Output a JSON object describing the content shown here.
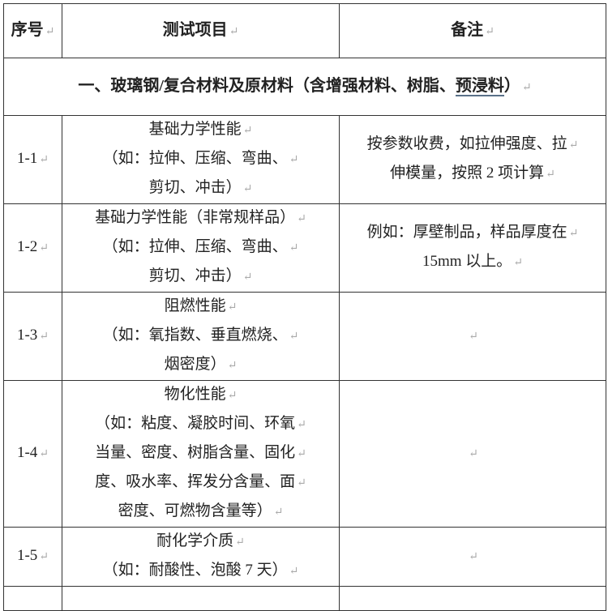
{
  "header": {
    "col_index": "序号",
    "col_item": "测试项目",
    "col_note": "备注"
  },
  "section": {
    "title_prefix": "一、玻璃钢/复合材料及原材料（含增强材料、树脂、",
    "title_underlined": "预浸料",
    "title_suffix": "）"
  },
  "rows": [
    {
      "id": "1-1",
      "item": [
        "基础力学性能",
        "（如：拉伸、压缩、弯曲、",
        "剪切、冲击）"
      ],
      "note": [
        "按参数收费，如拉伸强度、拉",
        "伸模量，按照 2 项计算"
      ]
    },
    {
      "id": "1-2",
      "item": [
        "基础力学性能（非常规样品）",
        "（如：拉伸、压缩、弯曲、",
        "剪切、冲击）"
      ],
      "note": [
        "例如：厚壁制品，样品厚度在",
        "15mm 以上。"
      ]
    },
    {
      "id": "1-3",
      "item": [
        "阻燃性能",
        "（如：氧指数、垂直燃烧、",
        "烟密度）"
      ],
      "note": []
    },
    {
      "id": "1-4",
      "item": [
        "物化性能",
        "（如：粘度、凝胶时间、环氧",
        "当量、密度、树脂含量、固化",
        "度、吸水率、挥发分含量、面",
        "密度、可燃物含量等）"
      ],
      "note": []
    },
    {
      "id": "1-5",
      "item": [
        "耐化学介质",
        "（如：耐酸性、泡酸 7 天）"
      ],
      "note": []
    }
  ]
}
